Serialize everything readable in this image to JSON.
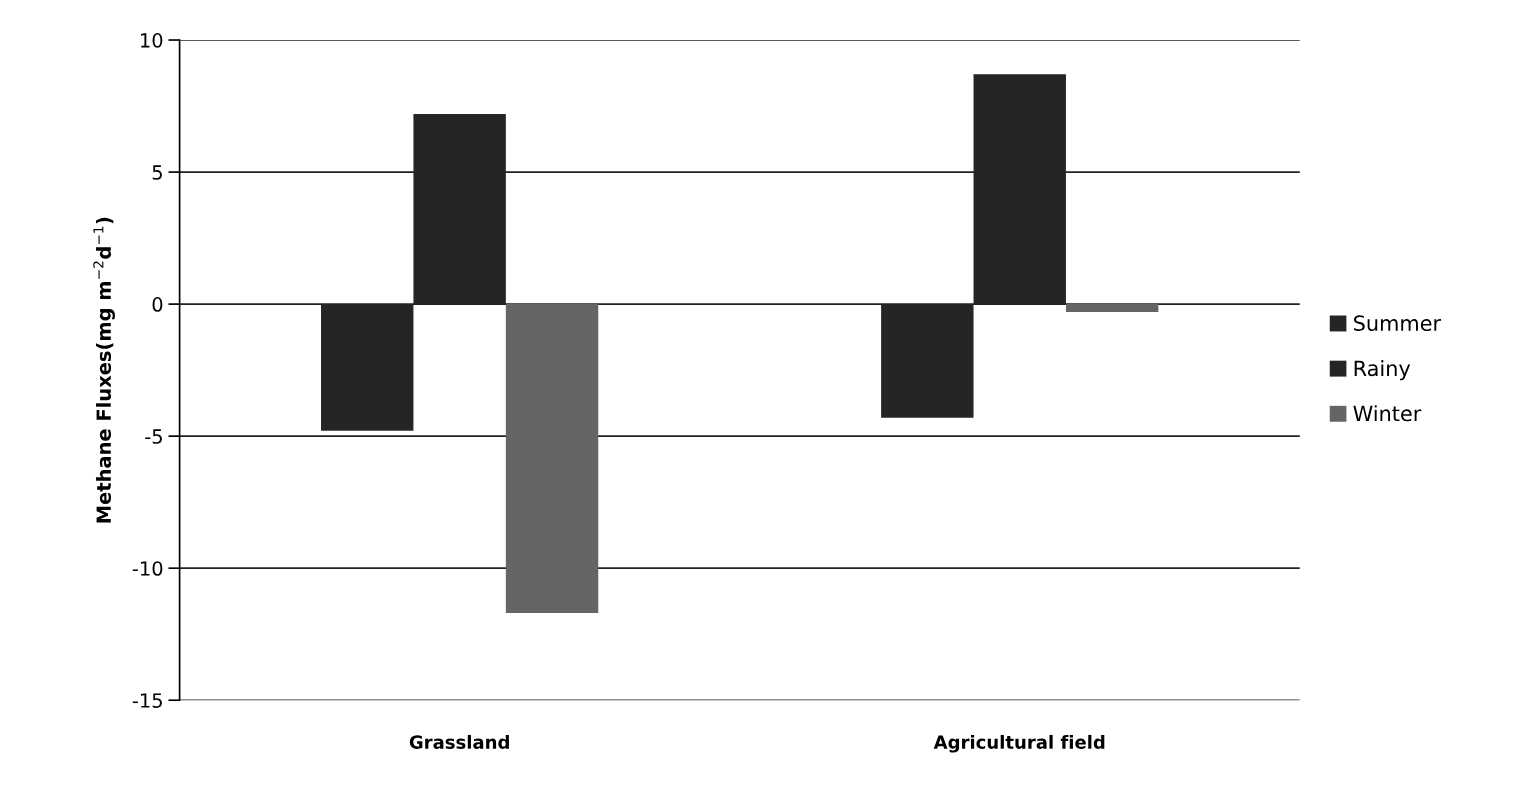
{
  "chart_data": {
    "type": "bar",
    "ylabel": "Methane Fluxes(mg m$^{−2}$d$^{−1}$)",
    "categories": [
      "Grassland",
      "Agricultural field"
    ],
    "series": [
      {
        "name": "Summer",
        "color": "#272425",
        "values": [
          -4.8,
          -4.3
        ]
      },
      {
        "name": "Rainy",
        "color": "#272425",
        "values": [
          7.2,
          8.7
        ]
      },
      {
        "name": "Winter",
        "color": "#656567",
        "values": [
          -11.7,
          -0.3
        ]
      }
    ],
    "ylim": [
      -15,
      10
    ],
    "yticks": [
      -15,
      -10,
      -5,
      0,
      5,
      10
    ],
    "grid": "y",
    "legend": "right"
  }
}
